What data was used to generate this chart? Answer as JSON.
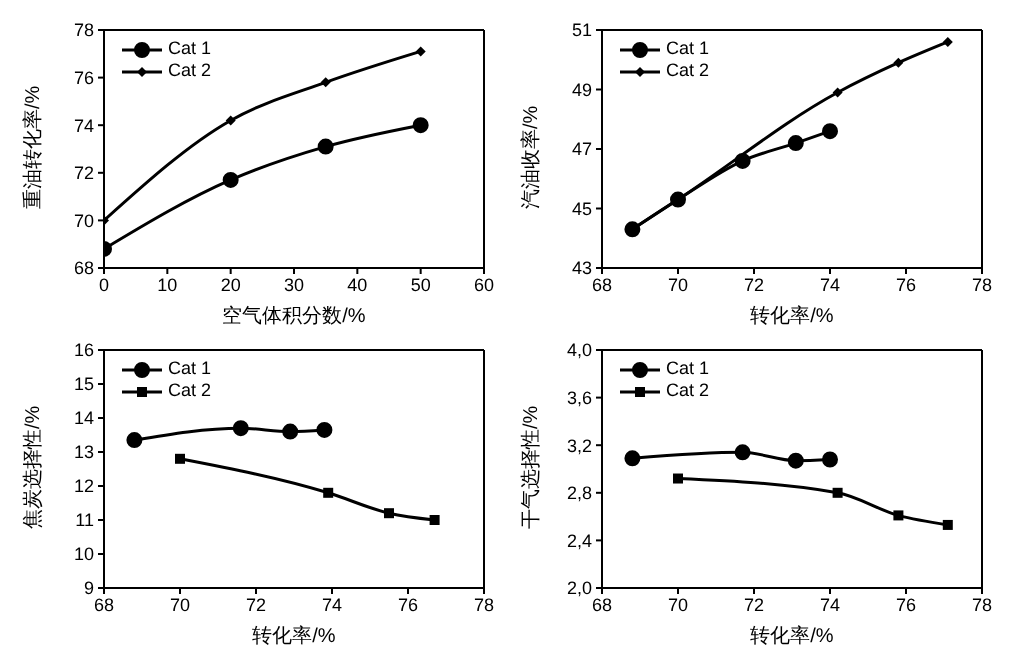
{
  "chart_data": [
    {
      "type": "line",
      "xlabel": "空气体积分数/%",
      "ylabel": "重油转化率/%",
      "xlim": [
        0,
        60
      ],
      "xticks": [
        0,
        10,
        20,
        30,
        40,
        50,
        60
      ],
      "ylim": [
        68,
        78
      ],
      "yticks": [
        68,
        70,
        72,
        74,
        76,
        78
      ],
      "legend": "top left",
      "grid": false,
      "series": [
        {
          "name": "Cat 1",
          "color": "#000000",
          "marker": "circle",
          "x": [
            0,
            20,
            35,
            50
          ],
          "values": [
            68.8,
            71.7,
            73.1,
            74.0
          ]
        },
        {
          "name": "Cat 2",
          "color": "#000000",
          "marker": "diamond",
          "x": [
            0,
            20,
            35,
            50
          ],
          "values": [
            70.0,
            74.2,
            75.8,
            77.1
          ]
        }
      ]
    },
    {
      "type": "line",
      "xlabel": "转化率/%",
      "ylabel": "汽油收率/%",
      "xlim": [
        68,
        78
      ],
      "xticks": [
        68,
        70,
        72,
        74,
        76,
        78
      ],
      "ylim": [
        43,
        51
      ],
      "yticks": [
        43,
        45,
        47,
        49,
        51
      ],
      "legend": "top left",
      "grid": false,
      "series": [
        {
          "name": "Cat 1",
          "color": "#000000",
          "marker": "circle",
          "x": [
            68.8,
            70.0,
            71.7,
            73.1,
            74.0
          ],
          "values": [
            44.3,
            45.3,
            46.6,
            47.2,
            47.6
          ]
        },
        {
          "name": "Cat 2",
          "color": "#000000",
          "marker": "diamond",
          "x": [
            68.8,
            70.0,
            74.2,
            75.8,
            77.1
          ],
          "values": [
            44.3,
            45.3,
            48.9,
            49.9,
            50.6
          ]
        }
      ]
    },
    {
      "type": "line",
      "xlabel": "转化率/%",
      "ylabel": "焦炭选择性/%",
      "xlim": [
        68,
        78
      ],
      "xticks": [
        68,
        70,
        72,
        74,
        76,
        78
      ],
      "ylim": [
        9,
        16
      ],
      "yticks": [
        9,
        10,
        11,
        12,
        13,
        14,
        15,
        16
      ],
      "legend": "top left",
      "grid": false,
      "series": [
        {
          "name": "Cat 1",
          "color": "#000000",
          "marker": "circle",
          "x": [
            68.8,
            71.6,
            72.9,
            73.8
          ],
          "values": [
            13.35,
            13.7,
            13.6,
            13.65
          ]
        },
        {
          "name": "Cat 2",
          "color": "#000000",
          "marker": "square",
          "x": [
            70.0,
            73.9,
            75.5,
            76.7
          ],
          "values": [
            12.8,
            11.8,
            11.2,
            11.0
          ]
        }
      ]
    },
    {
      "type": "line",
      "xlabel": "转化率/%",
      "ylabel": "干气选择性/%",
      "xlim": [
        68,
        78
      ],
      "xticks": [
        68,
        70,
        72,
        74,
        76,
        78
      ],
      "ylim": [
        2.0,
        4.0
      ],
      "yticks": [
        {
          "value": 2.0,
          "label": "2,0"
        },
        {
          "value": 2.4,
          "label": "2,4"
        },
        {
          "value": 2.8,
          "label": "2,8"
        },
        {
          "value": 3.2,
          "label": "3,2"
        },
        {
          "value": 3.6,
          "label": "3,6"
        },
        {
          "value": 4.0,
          "label": "4,0"
        }
      ],
      "legend": "top left",
      "grid": false,
      "series": [
        {
          "name": "Cat 1",
          "color": "#000000",
          "marker": "circle",
          "x": [
            68.8,
            71.7,
            73.1,
            74.0
          ],
          "values": [
            3.09,
            3.14,
            3.07,
            3.08
          ]
        },
        {
          "name": "Cat 2",
          "color": "#000000",
          "marker": "square",
          "x": [
            70.0,
            74.2,
            75.8,
            77.1
          ],
          "values": [
            2.92,
            2.8,
            2.61,
            2.53
          ]
        }
      ]
    }
  ]
}
